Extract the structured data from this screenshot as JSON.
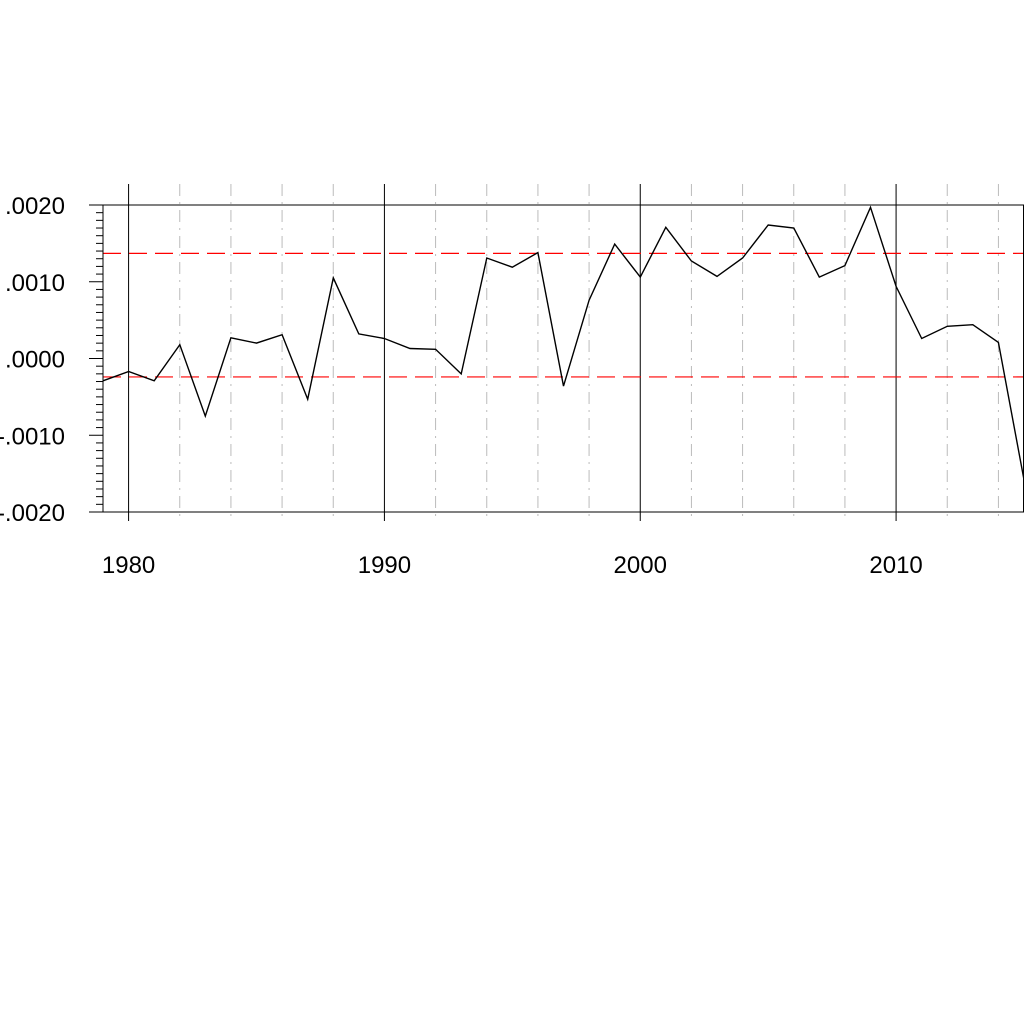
{
  "chart_data": {
    "type": "line",
    "title": "",
    "xlabel": "",
    "ylabel": "",
    "xlim": [
      1979,
      2015
    ],
    "ylim": [
      -0.002,
      0.002
    ],
    "x_ticks": [
      1980,
      1990,
      2000,
      2010
    ],
    "x_tick_labels": [
      "1980",
      "1990",
      "2000",
      "2010"
    ],
    "y_ticks": [
      0.002,
      0.001,
      0.0,
      -0.001,
      -0.002
    ],
    "y_tick_labels": [
      ".0020",
      ".0010",
      ".0000",
      "-.0010",
      "-.0020"
    ],
    "grid": "vertical: solid at decades, dash-dot at even years",
    "reference_lines": [
      {
        "value": 0.00137,
        "style": "dashed",
        "color": "#ff0000"
      },
      {
        "value": -0.00024,
        "style": "dashed",
        "color": "#ff0000"
      }
    ],
    "series": [
      {
        "color": "#000000",
        "x": [
          1979,
          1980,
          1981,
          1982,
          1983,
          1984,
          1985,
          1986,
          1987,
          1988,
          1989,
          1990,
          1991,
          1992,
          1993,
          1994,
          1995,
          1996,
          1997,
          1998,
          1999,
          2000,
          2001,
          2002,
          2003,
          2004,
          2005,
          2006,
          2007,
          2008,
          2009,
          2010,
          2011,
          2012,
          2013,
          2014,
          2015
        ],
        "values": [
          -0.00029,
          -0.00017,
          -0.00029,
          0.00018,
          -0.00075,
          0.00027,
          0.0002,
          0.00031,
          -0.00053,
          0.00105,
          0.00032,
          0.00026,
          0.00013,
          0.00012,
          -0.0002,
          0.00131,
          0.00119,
          0.00138,
          -0.00036,
          0.00076,
          0.00149,
          0.00106,
          0.00171,
          0.00127,
          0.00107,
          0.00131,
          0.00174,
          0.0017,
          0.00106,
          0.00121,
          0.00197,
          0.00094,
          0.00026,
          0.00042,
          0.00044,
          0.00021,
          -0.00158
        ]
      }
    ]
  }
}
